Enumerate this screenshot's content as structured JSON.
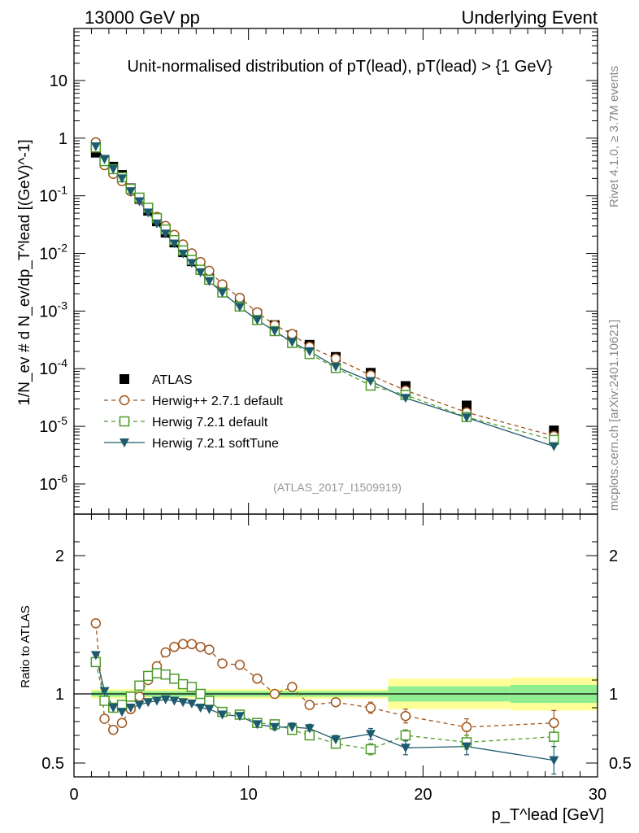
{
  "header": {
    "left": "13000 GeV pp",
    "right": "Underlying Event",
    "side_top": "Rivet 4.1.0, ≥ 3.7M events",
    "side_bottom": "mcplots.cern.ch [arXiv:2401.10621]",
    "analysis_id": "(ATLAS_2017_I1509919)"
  },
  "chart_data": [
    {
      "type": "scatter",
      "title": "Unit-normalised distribution of pT(lead), pT(lead) > {1 GeV}",
      "ylabel": "1/N_ev # d N_ev/dp_T^lead [(GeV)^-1]",
      "yscale": "log",
      "xlim": [
        0,
        30
      ],
      "ylim": [
        3e-07,
        80
      ],
      "yticks": [
        "10",
        "1",
        "10^-1",
        "10^-2",
        "10^-3",
        "10^-4",
        "10^-5",
        "10^-6"
      ],
      "legend_position": "lower-left",
      "series": [
        {
          "name": "ATLAS",
          "style": "black-square",
          "x": [
            1.25,
            1.75,
            2.25,
            2.75,
            3.25,
            3.75,
            4.25,
            4.75,
            5.25,
            5.75,
            6.25,
            6.75,
            7.25,
            7.75,
            8.5,
            9.5,
            10.5,
            11.5,
            12.5,
            13.5,
            15,
            17,
            19,
            22.5,
            27.5
          ],
          "y": [
            0.56,
            0.42,
            0.32,
            0.23,
            0.135,
            0.088,
            0.055,
            0.036,
            0.023,
            0.0155,
            0.0105,
            0.0073,
            0.0052,
            0.0037,
            0.0024,
            0.0014,
            0.00088,
            0.00057,
            0.00038,
            0.00026,
            0.00016,
            8.5e-05,
            5e-05,
            2.3e-05,
            8.5e-06
          ]
        },
        {
          "name": "Herwig++ 2.7.1 default",
          "style": "orange-circle-dashed",
          "x": [
            1.25,
            1.75,
            2.25,
            2.75,
            3.25,
            3.75,
            4.25,
            4.75,
            5.25,
            5.75,
            6.25,
            6.75,
            7.25,
            7.75,
            8.5,
            9.5,
            10.5,
            11.5,
            12.5,
            13.5,
            15,
            17,
            19,
            22.5,
            27.5
          ],
          "y": [
            0.85,
            0.34,
            0.24,
            0.18,
            0.12,
            0.086,
            0.06,
            0.043,
            0.03,
            0.021,
            0.0143,
            0.01,
            0.0071,
            0.005,
            0.0029,
            0.0017,
            0.00095,
            0.00057,
            0.0004,
            0.00024,
            0.00015,
            7.7e-05,
            4.2e-05,
            1.75e-05,
            6.8e-06
          ]
        },
        {
          "name": "Herwig 7.2.1 default",
          "style": "green-square-dashed",
          "x": [
            1.25,
            1.75,
            2.25,
            2.75,
            3.25,
            3.75,
            4.25,
            4.75,
            5.25,
            5.75,
            6.25,
            6.75,
            7.25,
            7.75,
            8.5,
            9.5,
            10.5,
            11.5,
            12.5,
            13.5,
            15,
            17,
            19,
            22.5,
            27.5
          ],
          "y": [
            0.69,
            0.4,
            0.29,
            0.21,
            0.132,
            0.093,
            0.062,
            0.041,
            0.026,
            0.017,
            0.0113,
            0.0077,
            0.0052,
            0.0035,
            0.0021,
            0.0012,
            0.0007,
            0.00045,
            0.00028,
            0.00018,
            0.000103,
            5.1e-05,
            3.5e-05,
            1.45e-05,
            5.8e-06
          ]
        },
        {
          "name": "Herwig 7.2.1 softTune",
          "style": "teal-triangle-solid",
          "x": [
            1.25,
            1.75,
            2.25,
            2.75,
            3.25,
            3.75,
            4.25,
            4.75,
            5.25,
            5.75,
            6.25,
            6.75,
            7.25,
            7.75,
            8.5,
            9.5,
            10.5,
            11.5,
            12.5,
            13.5,
            15,
            17,
            19,
            22.5,
            27.5
          ],
          "y": [
            0.72,
            0.43,
            0.29,
            0.2,
            0.12,
            0.08,
            0.051,
            0.033,
            0.022,
            0.0148,
            0.0099,
            0.0068,
            0.0047,
            0.0033,
            0.0021,
            0.00118,
            0.0007,
            0.00045,
            0.00029,
            0.0002,
            0.000108,
            6.1e-05,
            3.1e-05,
            1.42e-05,
            4.5e-06
          ]
        }
      ]
    },
    {
      "type": "scatter",
      "ylabel": "Ratio to ATLAS",
      "xlabel": "p_T^lead [GeV]",
      "xlim": [
        0,
        30
      ],
      "ylim": [
        0.4,
        2.3
      ],
      "xticks": [
        "0",
        "10",
        "20",
        "30"
      ],
      "yticks": [
        "2",
        "1",
        "0.5"
      ],
      "band_edges": [
        1,
        18,
        25,
        30
      ],
      "band_inner": [
        0.02,
        0.055,
        0.065
      ],
      "band_outer": [
        0.035,
        0.11,
        0.12
      ],
      "series": [
        {
          "name": "Herwig++ 2.7.1 default",
          "x": [
            1.25,
            1.75,
            2.25,
            2.75,
            3.25,
            3.75,
            4.25,
            4.75,
            5.25,
            5.75,
            6.25,
            6.75,
            7.25,
            7.75,
            8.5,
            9.5,
            10.5,
            11.5,
            12.5,
            13.5,
            15,
            17,
            19,
            22.5,
            27.5
          ],
          "y": [
            1.51,
            0.82,
            0.74,
            0.79,
            0.89,
            0.98,
            1.1,
            1.2,
            1.3,
            1.34,
            1.36,
            1.36,
            1.34,
            1.32,
            1.22,
            1.21,
            1.11,
            1.0,
            1.05,
            0.92,
            0.94,
            0.9,
            0.84,
            0.76,
            0.79
          ],
          "err": [
            0.02,
            0.02,
            0.01,
            0.01,
            0.01,
            0.01,
            0.01,
            0.01,
            0.01,
            0.01,
            0.01,
            0.01,
            0.01,
            0.01,
            0.01,
            0.01,
            0.02,
            0.02,
            0.03,
            0.03,
            0.03,
            0.04,
            0.05,
            0.06,
            0.09
          ]
        },
        {
          "name": "Herwig 7.2.1 default",
          "x": [
            1.25,
            1.75,
            2.25,
            2.75,
            3.25,
            3.75,
            4.25,
            4.75,
            5.25,
            5.75,
            6.25,
            6.75,
            7.25,
            7.75,
            8.5,
            9.5,
            10.5,
            11.5,
            12.5,
            13.5,
            15,
            17,
            19,
            22.5,
            27.5
          ],
          "y": [
            1.23,
            0.95,
            0.9,
            0.92,
            0.98,
            1.06,
            1.13,
            1.15,
            1.14,
            1.11,
            1.07,
            1.05,
            1.0,
            0.95,
            0.87,
            0.85,
            0.79,
            0.78,
            0.74,
            0.7,
            0.64,
            0.6,
            0.7,
            0.65,
            0.69
          ],
          "err": [
            0.02,
            0.01,
            0.01,
            0.01,
            0.01,
            0.01,
            0.01,
            0.01,
            0.01,
            0.01,
            0.01,
            0.01,
            0.01,
            0.01,
            0.01,
            0.01,
            0.01,
            0.02,
            0.02,
            0.03,
            0.03,
            0.04,
            0.04,
            0.05,
            0.07
          ]
        },
        {
          "name": "Herwig 7.2.1 softTune",
          "x": [
            1.25,
            1.75,
            2.25,
            2.75,
            3.25,
            3.75,
            4.25,
            4.75,
            5.25,
            5.75,
            6.25,
            6.75,
            7.25,
            7.75,
            8.5,
            9.5,
            10.5,
            11.5,
            12.5,
            13.5,
            15,
            17,
            19,
            22.5,
            27.5
          ],
          "y": [
            1.28,
            1.02,
            0.9,
            0.87,
            0.9,
            0.92,
            0.94,
            0.95,
            0.96,
            0.95,
            0.94,
            0.93,
            0.9,
            0.89,
            0.85,
            0.84,
            0.78,
            0.76,
            0.76,
            0.75,
            0.67,
            0.71,
            0.61,
            0.62,
            0.52
          ],
          "err": [
            0.02,
            0.01,
            0.01,
            0.01,
            0.01,
            0.01,
            0.01,
            0.01,
            0.01,
            0.01,
            0.01,
            0.01,
            0.01,
            0.01,
            0.01,
            0.01,
            0.02,
            0.02,
            0.03,
            0.03,
            0.03,
            0.04,
            0.05,
            0.06,
            0.1
          ]
        }
      ]
    }
  ],
  "colors": {
    "atlas": "#000000",
    "herwigpp": "#a0561e",
    "herwig721": "#4f9a2a",
    "softtune": "#1d5a6e",
    "band_outer": "#ffff99",
    "band_inner": "#90ee90"
  }
}
